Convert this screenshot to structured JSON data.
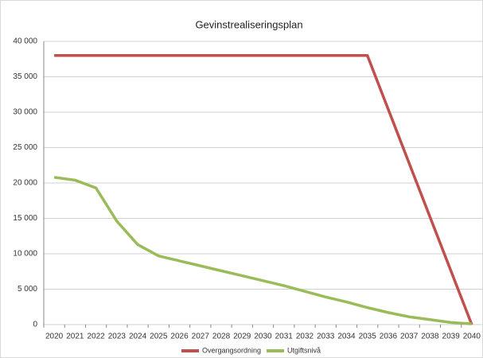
{
  "chart_data": {
    "type": "line",
    "title": "Gevinstrealiseringsplan",
    "categories": [
      "2020",
      "2021",
      "2022",
      "2023",
      "2024",
      "2025",
      "2026",
      "2027",
      "2028",
      "2029",
      "2030",
      "2031",
      "2032",
      "2033",
      "2034",
      "2035",
      "2036",
      "2037",
      "2038",
      "2039",
      "2040"
    ],
    "series": [
      {
        "name": "Overgangsordning",
        "color": "#c0504d",
        "values": [
          38000,
          38000,
          38000,
          38000,
          38000,
          38000,
          38000,
          38000,
          38000,
          38000,
          38000,
          38000,
          38000,
          38000,
          38000,
          38000,
          30400,
          22800,
          15200,
          7600,
          0
        ]
      },
      {
        "name": "Utgiftsnivå",
        "color": "#9bbb59",
        "values": [
          20800,
          20400,
          19300,
          14600,
          11300,
          9700,
          9000,
          8300,
          7600,
          6900,
          6200,
          5500,
          4700,
          3900,
          3200,
          2400,
          1700,
          1100,
          700,
          300,
          100
        ]
      }
    ],
    "ylim": [
      0,
      40000
    ],
    "yticks": [
      {
        "value": 0,
        "label": "0"
      },
      {
        "value": 5000,
        "label": "5 000"
      },
      {
        "value": 10000,
        "label": "10 000"
      },
      {
        "value": 15000,
        "label": "15 000"
      },
      {
        "value": 20000,
        "label": "20 000"
      },
      {
        "value": 25000,
        "label": "25 000"
      },
      {
        "value": 30000,
        "label": "30 000"
      },
      {
        "value": 35000,
        "label": "35 000"
      },
      {
        "value": 40000,
        "label": "40 000"
      }
    ],
    "grid": true,
    "legend": "bottom"
  }
}
